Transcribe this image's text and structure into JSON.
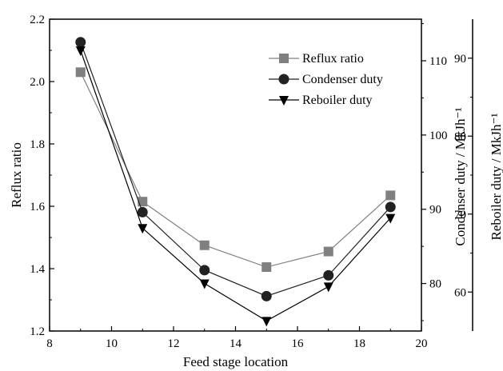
{
  "chart_data": {
    "type": "line",
    "xlabel": "Feed stage location",
    "x": [
      9,
      11,
      13,
      15,
      17,
      19
    ],
    "xlim": [
      8,
      20
    ],
    "xticks": [
      8,
      10,
      12,
      14,
      16,
      18,
      20
    ],
    "axes": [
      {
        "id": "left",
        "label": "Reflux ratio",
        "lim": [
          1.2,
          2.2
        ],
        "ticks": [
          "1.2",
          "1.4",
          "1.6",
          "1.8",
          "2.0",
          "2.2"
        ]
      },
      {
        "id": "right1",
        "label": "Condenser duty / MkJh⁻¹",
        "lim": [
          73.6,
          115.6
        ],
        "ticks": [
          "80",
          "90",
          "100",
          "110"
        ]
      },
      {
        "id": "right2",
        "label": "Reboiler duty / MkJh⁻¹",
        "lim": [
          55,
          95
        ],
        "ticks": [
          "60",
          "70",
          "80",
          "90"
        ]
      }
    ],
    "series": [
      {
        "name": "Reflux ratio",
        "axis": "left",
        "marker": "square",
        "color": "#808080",
        "values": [
          2.03,
          1.615,
          1.475,
          1.405,
          1.455,
          1.635
        ]
      },
      {
        "name": "Condenser duty",
        "axis": "right1",
        "marker": "circle",
        "color": "#222222",
        "values": [
          112.5,
          89.6,
          81.8,
          78.3,
          81.1,
          90.3
        ]
      },
      {
        "name": "Reboiler duty",
        "axis": "right2",
        "marker": "triangle",
        "color": "#000000",
        "values": [
          91,
          68.2,
          61.1,
          56.3,
          60.7,
          69.5
        ]
      }
    ],
    "legend": "top-right",
    "grid": false
  }
}
